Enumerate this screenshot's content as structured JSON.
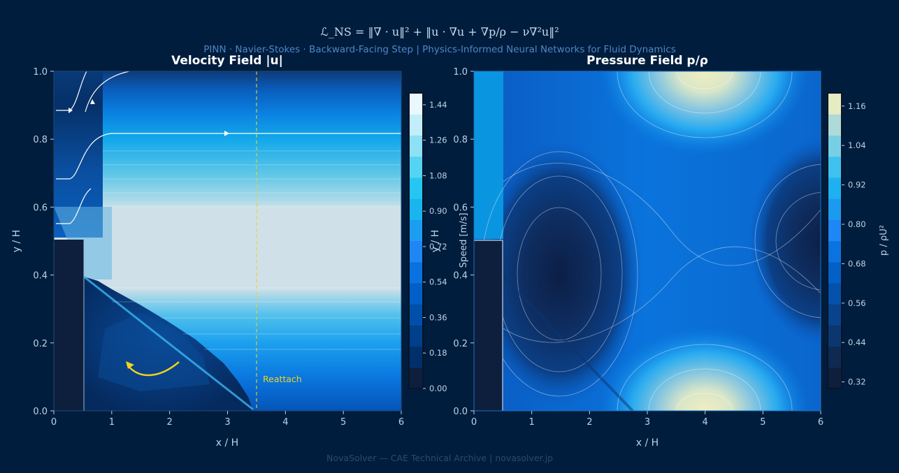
{
  "header": {
    "equation": "ℒ_NS = ‖∇ · u‖²  +  ‖u · ∇u + ∇p/ρ − ν∇²u‖²",
    "subtitle": "PINN  ·  Navier-Stokes  ·  Backward-Facing Step  |  Physics-Informed Neural Networks for Fluid Dynamics"
  },
  "footer": {
    "credit": "NovaSolver — CAE Technical Archive  |  novasolver.jp"
  },
  "colors": {
    "background": "#001d3d",
    "accent": "#f2d21b",
    "text": "#bcd3e8",
    "title": "#ffffff",
    "frame": "#1e4a7a",
    "step": "#0e1f3d"
  },
  "chart_data": [
    {
      "type": "heatmap",
      "title": "Velocity Field  |u|",
      "xlabel": "x / H",
      "ylabel": "y / H",
      "xlim": [
        0,
        6
      ],
      "ylim": [
        0,
        1
      ],
      "xticks": [
        "0",
        "1",
        "2",
        "3",
        "4",
        "5",
        "6"
      ],
      "yticks": [
        "0.0",
        "0.2",
        "0.4",
        "0.6",
        "0.8",
        "1.0"
      ],
      "colorbar": {
        "label": "Speed [m/s]",
        "range": [
          0,
          1.5
        ],
        "ticks": [
          "0.00",
          "0.18",
          "0.36",
          "0.54",
          "0.72",
          "0.90",
          "1.08",
          "1.26",
          "1.44"
        ],
        "colors": [
          "#0e1f3d",
          "#00306b",
          "#003f8a",
          "#004fa8",
          "#0060c8",
          "#0a72e0",
          "#1e86f5",
          "#1b9df0",
          "#1ab5ef",
          "#27c6f2",
          "#55d3f3",
          "#8ee0f5",
          "#c2eef9",
          "#eaf8fd"
        ]
      },
      "step": {
        "x_end": 0.5,
        "y_top": 0.5
      },
      "annotation": {
        "text": "Reattach",
        "x": 3.5
      },
      "streamlines_y": [
        0.89,
        0.82,
        0.68,
        0.55
      ]
    },
    {
      "type": "heatmap",
      "title": "Pressure Field  p/ρ",
      "xlabel": "x / H",
      "ylabel": "y / H",
      "xlim": [
        0,
        6
      ],
      "ylim": [
        0,
        1
      ],
      "xticks": [
        "0",
        "1",
        "2",
        "3",
        "4",
        "5",
        "6"
      ],
      "yticks": [
        "0.0",
        "0.2",
        "0.4",
        "0.6",
        "0.8",
        "1.0"
      ],
      "colorbar": {
        "label": "p / ρU²",
        "range": [
          0.3,
          1.2
        ],
        "ticks": [
          "0.32",
          "0.44",
          "0.56",
          "0.68",
          "0.80",
          "0.92",
          "1.04",
          "1.16"
        ],
        "colors": [
          "#0e1f3d",
          "#0e2a52",
          "#0c3670",
          "#08438c",
          "#0351ab",
          "#0260c7",
          "#0a73e0",
          "#1e86f5",
          "#1a9bf0",
          "#1fb0ef",
          "#3ec1ee",
          "#77cfe6",
          "#aedad7",
          "#e6ebc2"
        ]
      },
      "step": {
        "x_end": 0.5,
        "y_top": 0.5
      }
    }
  ]
}
